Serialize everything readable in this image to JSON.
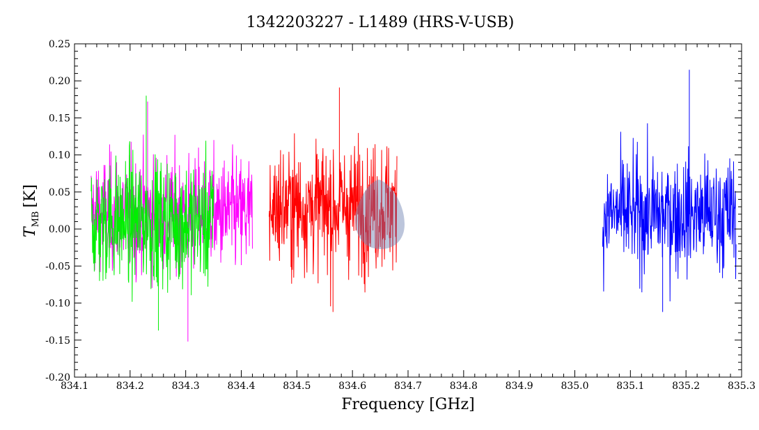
{
  "chart_data": {
    "type": "line",
    "title": "1342203227 - L1489 (HRS-V-USB)",
    "xlabel": "Frequency [GHz]",
    "ylabel": {
      "main": "T",
      "subscript": "MB",
      "unit": "[K]"
    },
    "xlim": [
      834.1,
      835.3
    ],
    "ylim": [
      -0.2,
      0.25
    ],
    "xticks": [
      "834.1",
      "834.2",
      "834.3",
      "834.4",
      "834.5",
      "834.6",
      "834.7",
      "834.8",
      "834.9",
      "835.0",
      "835.1",
      "835.2",
      "835.3"
    ],
    "yticks": [
      "-0.20",
      "-0.15",
      "-0.10",
      "-0.05",
      "0.00",
      "0.05",
      "0.10",
      "0.15",
      "0.20",
      "0.25"
    ],
    "grid": false,
    "legend": "none",
    "series": [
      {
        "color": "#ff00ff",
        "x_range": [
          834.13,
          834.42
        ],
        "mean": 0.02,
        "sigma": 0.055,
        "min": -0.152,
        "max": 0.172
      },
      {
        "color": "#00ee00",
        "x_range": [
          834.13,
          834.35
        ],
        "mean": 0.01,
        "sigma": 0.06,
        "min": -0.137,
        "max": 0.18
      },
      {
        "color": "#ff0000",
        "x_range": [
          834.45,
          834.68
        ],
        "mean": 0.03,
        "sigma": 0.06,
        "min": -0.112,
        "max": 0.191
      },
      {
        "color": "#0000ff",
        "x_range": [
          835.05,
          835.29
        ],
        "mean": 0.02,
        "sigma": 0.055,
        "min": -0.112,
        "max": 0.215
      }
    ]
  }
}
